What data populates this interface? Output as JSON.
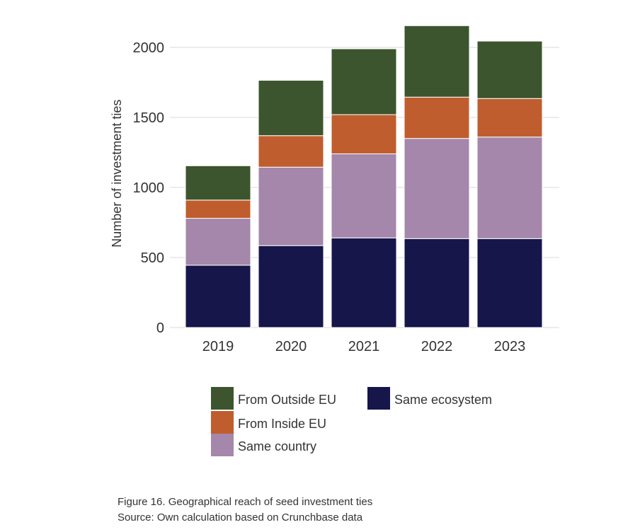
{
  "chart_data": {
    "type": "bar",
    "stacked": true,
    "categories": [
      "2019",
      "2020",
      "2021",
      "2022",
      "2023"
    ],
    "series": [
      {
        "name": "Same ecosystem",
        "color": "#16164b",
        "values": [
          445,
          585,
          640,
          635,
          635
        ]
      },
      {
        "name": "Same country",
        "color": "#a487ab",
        "values": [
          335,
          560,
          600,
          715,
          725
        ]
      },
      {
        "name": "From Inside EU",
        "color": "#c05d2e",
        "values": [
          130,
          225,
          280,
          295,
          275
        ]
      },
      {
        "name": "From Outside EU",
        "color": "#3c552e",
        "values": [
          245,
          395,
          470,
          510,
          410
        ]
      }
    ],
    "xlabel": "",
    "ylabel": "Number of investment ties",
    "ylim": [
      0,
      2200
    ],
    "yticks": [
      0,
      500,
      1000,
      1500,
      2000
    ],
    "grid": true,
    "legend_position": "bottom",
    "legend_order": [
      "From Outside EU",
      "From Inside EU",
      "Same country",
      "Same ecosystem"
    ]
  },
  "caption": {
    "figure": "Figure 16. Geographical reach of seed investment ties",
    "source": "Source: Own calculation based on Crunchbase data"
  }
}
